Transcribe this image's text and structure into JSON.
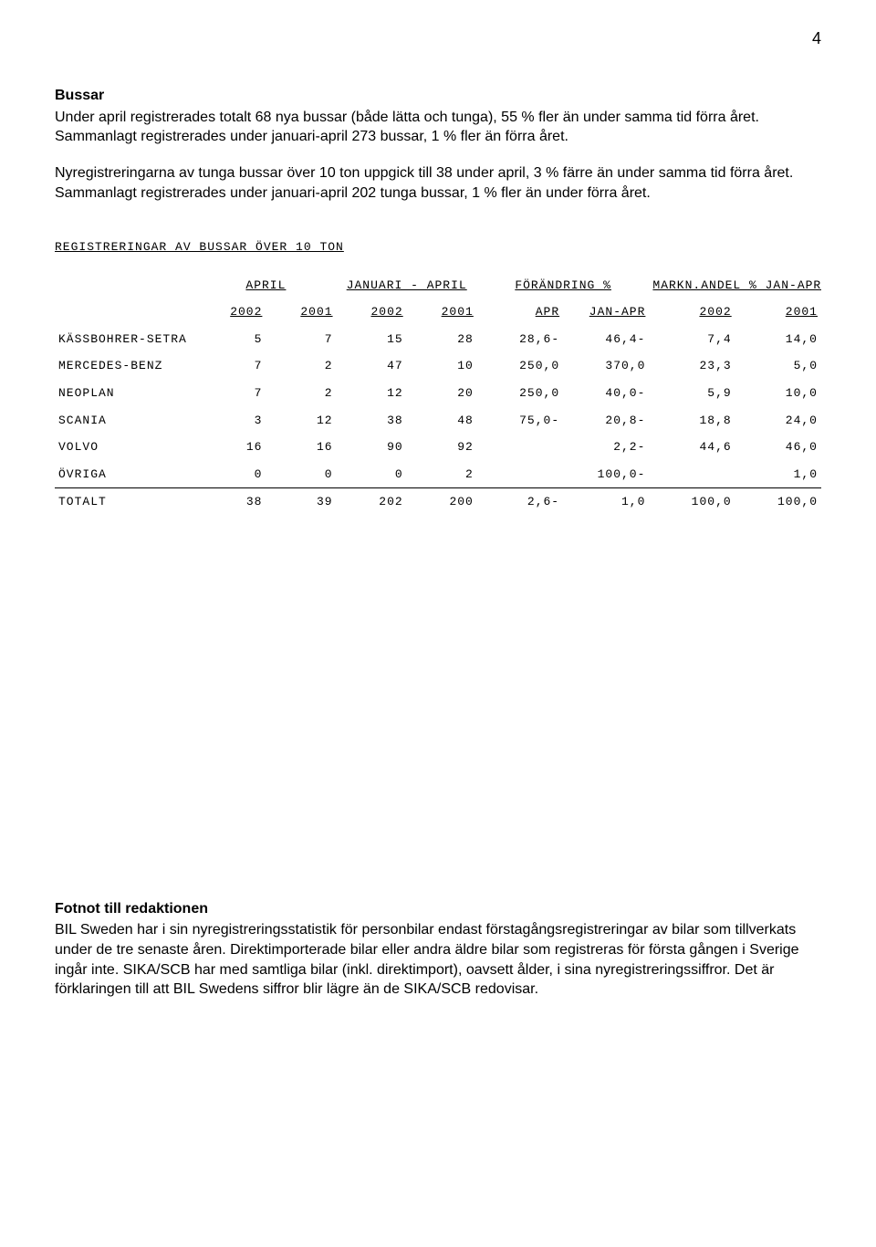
{
  "page_number": "4",
  "section_bussar": {
    "heading": "Bussar",
    "p1": "Under april registrerades totalt 68 nya bussar (både lätta och tunga), 55 % fler än under samma tid förra året. Sammanlagt registrerades under januari-april 273 bussar, 1 % fler än förra året.",
    "p2": "Nyregistreringarna av tunga bussar över 10 ton uppgick till 38 under april, 3 % färre än under samma tid förra året. Sammanlagt registrerades under januari-april 202 tunga bussar, 1 % fler än under förra året."
  },
  "table": {
    "title": "REGISTRERINGAR AV BUSSAR ÖVER 10 TON",
    "group_headers": {
      "april": "APRIL",
      "jan_apr": "JANUARI - APRIL",
      "change": "FÖRÄNDRING %",
      "share": "MARKN.ANDEL % JAN-APR"
    },
    "year_headers": {
      "y2002": "2002",
      "y2001": "2001",
      "apr": "APR",
      "janapr": "JAN-APR"
    },
    "rows": [
      {
        "label": "KÄSSBOHRER-SETRA",
        "a2002": "5",
        "a2001": "7",
        "j2002": "15",
        "j2001": "28",
        "chg_apr": "28,6-",
        "chg_jan": "46,4-",
        "sh2002": "7,4",
        "sh2001": "14,0"
      },
      {
        "label": "MERCEDES-BENZ",
        "a2002": "7",
        "a2001": "2",
        "j2002": "47",
        "j2001": "10",
        "chg_apr": "250,0",
        "chg_jan": "370,0",
        "sh2002": "23,3",
        "sh2001": "5,0"
      },
      {
        "label": "NEOPLAN",
        "a2002": "7",
        "a2001": "2",
        "j2002": "12",
        "j2001": "20",
        "chg_apr": "250,0",
        "chg_jan": "40,0-",
        "sh2002": "5,9",
        "sh2001": "10,0"
      },
      {
        "label": "SCANIA",
        "a2002": "3",
        "a2001": "12",
        "j2002": "38",
        "j2001": "48",
        "chg_apr": "75,0-",
        "chg_jan": "20,8-",
        "sh2002": "18,8",
        "sh2001": "24,0"
      },
      {
        "label": "VOLVO",
        "a2002": "16",
        "a2001": "16",
        "j2002": "90",
        "j2001": "92",
        "chg_apr": "",
        "chg_jan": "2,2-",
        "sh2002": "44,6",
        "sh2001": "46,0"
      },
      {
        "label": "ÖVRIGA",
        "a2002": "0",
        "a2001": "0",
        "j2002": "0",
        "j2001": "2",
        "chg_apr": "",
        "chg_jan": "100,0-",
        "sh2002": "",
        "sh2001": "1,0"
      }
    ],
    "total": {
      "label": "TOTALT",
      "a2002": "38",
      "a2001": "39",
      "j2002": "202",
      "j2001": "200",
      "chg_apr": "2,6-",
      "chg_jan": "1,0",
      "sh2002": "100,0",
      "sh2001": "100,0"
    }
  },
  "footnote": {
    "heading": "Fotnot till redaktionen",
    "body": "BIL Sweden har i sin nyregistreringsstatistik för personbilar endast förstagångsregistreringar av bilar som tillverkats under de tre senaste åren. Direktimporterade bilar eller andra äldre bilar som registreras för första gången i Sverige ingår inte. SIKA/SCB har med samtliga bilar (inkl. direktimport), oavsett ålder, i sina nyregistreringssiffror. Det är förklaringen till att BIL Swedens siffror blir lägre än de SIKA/SCB redovisar."
  },
  "styling": {
    "body_font": "Arial",
    "body_font_size_pt": 12,
    "table_font": "Courier New",
    "table_font_size_pt": 10,
    "text_color": "#000000",
    "background_color": "#ffffff",
    "rule_color": "#000000"
  }
}
